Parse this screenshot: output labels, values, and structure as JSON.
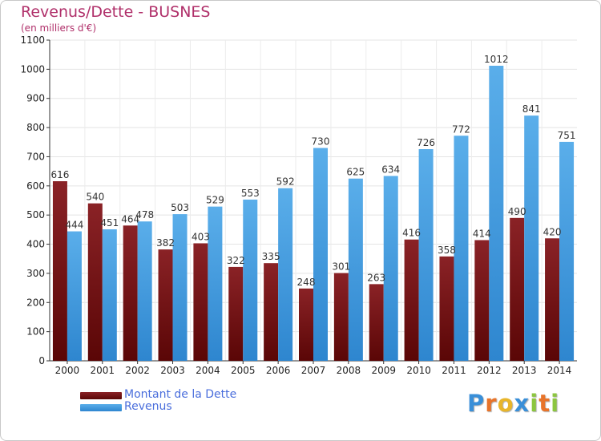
{
  "header": {
    "title": "Revenus/Dette - BUSNES",
    "subtitle": "(en milliers d'€)"
  },
  "colors": {
    "dette": "#7a1418",
    "revenus": "#4ea3e6",
    "title": "#b0306a",
    "legend_text": "#4a6edc"
  },
  "chart_data": {
    "type": "bar",
    "categories": [
      "2000",
      "2001",
      "2002",
      "2003",
      "2004",
      "2005",
      "2006",
      "2007",
      "2008",
      "2009",
      "2010",
      "2011",
      "2012",
      "2013",
      "2014"
    ],
    "series": [
      {
        "name": "Montant de la Dette",
        "values": [
          616,
          540,
          464,
          382,
          403,
          322,
          335,
          248,
          301,
          263,
          416,
          358,
          414,
          490,
          420
        ]
      },
      {
        "name": "Revenus",
        "values": [
          444,
          451,
          478,
          503,
          529,
          553,
          592,
          730,
          625,
          634,
          726,
          772,
          1012,
          841,
          751
        ]
      }
    ],
    "title": "Revenus/Dette - BUSNES",
    "ylabel": "(en milliers d'€)",
    "ylim": [
      0,
      1100
    ],
    "yticks": [
      0,
      100,
      200,
      300,
      400,
      500,
      600,
      700,
      800,
      900,
      1000,
      1100
    ],
    "grid": true,
    "legend_position": "bottom-left"
  },
  "legend": [
    {
      "label": "Montant de la Dette"
    },
    {
      "label": "Revenus"
    }
  ],
  "logo": {
    "letters": [
      "P",
      "r",
      "o",
      "x",
      "i",
      "t",
      "i"
    ],
    "colors": [
      "#3a8fd8",
      "#e8742a",
      "#e8b52a",
      "#3a8fd8",
      "#8cc63f",
      "#e8742a",
      "#8cc63f"
    ]
  }
}
